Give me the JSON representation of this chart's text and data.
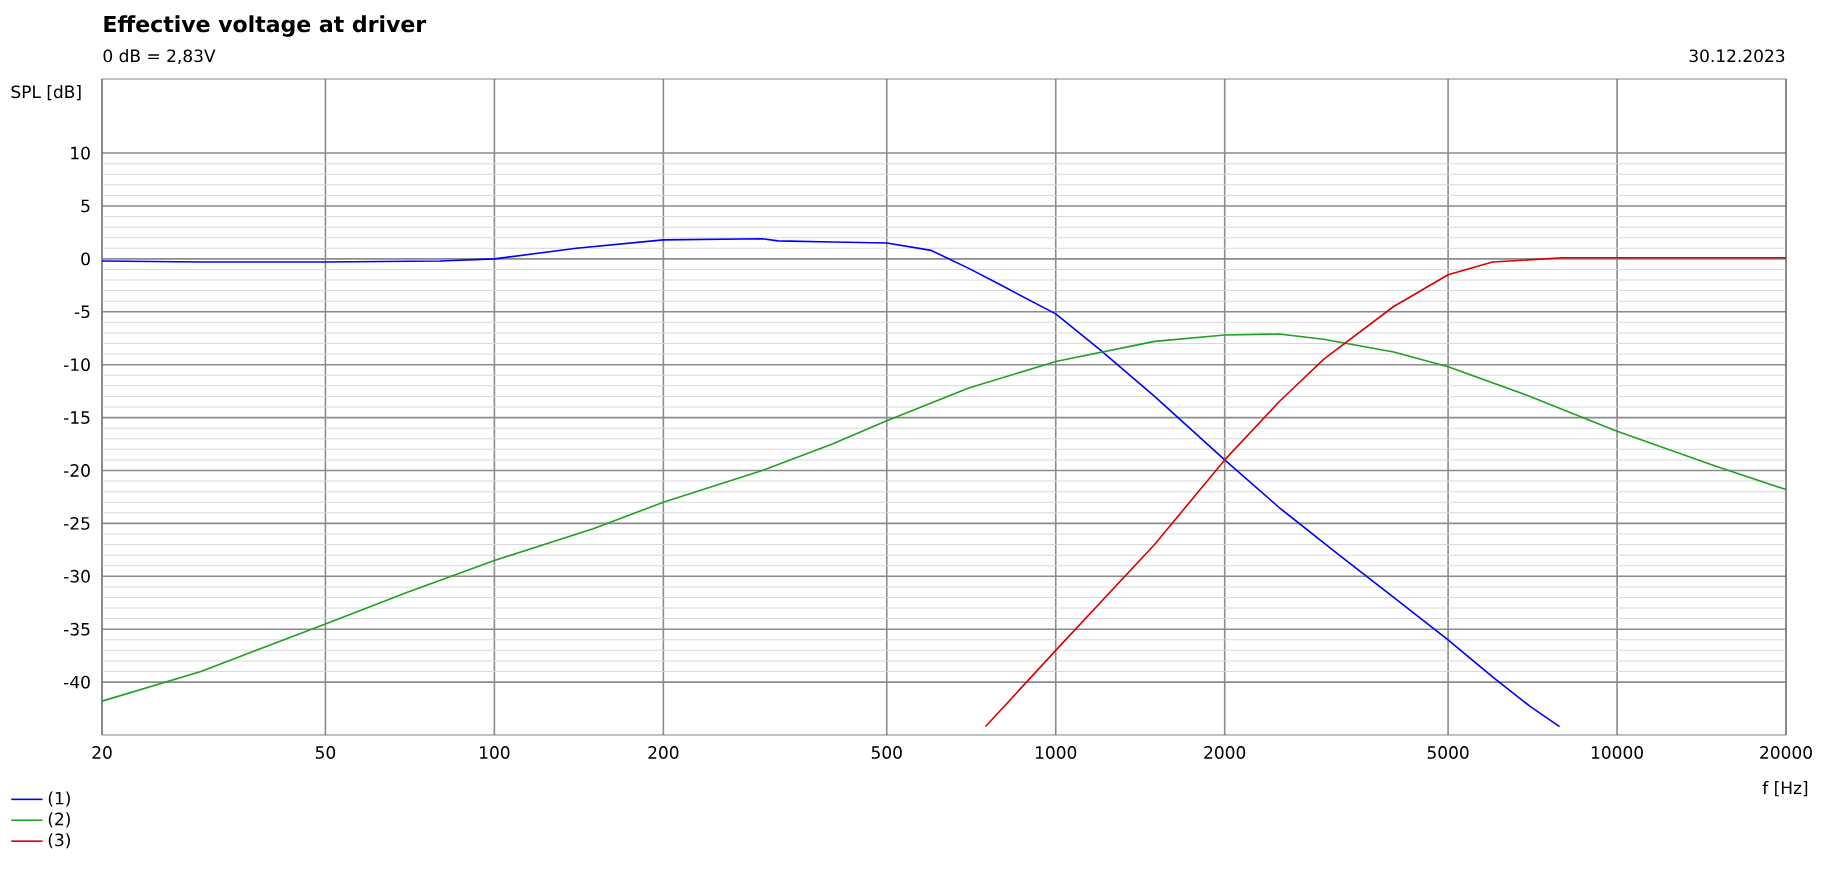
{
  "chart_data": {
    "type": "line",
    "title": "Effective voltage at driver",
    "subtitle": "0 dB = 2,83V",
    "annotations": [
      "30.12.2023"
    ],
    "xlabel": "f [Hz]",
    "ylabel": "SPL [dB]",
    "log": "x",
    "xlim": [
      20,
      20000
    ],
    "ylim": [
      -45,
      17
    ],
    "xticks": [
      20,
      50,
      100,
      200,
      500,
      1000,
      2000,
      5000,
      10000,
      20000
    ],
    "yticks": [
      -40,
      -35,
      -30,
      -25,
      -20,
      -15,
      -10,
      -5,
      0,
      5,
      10
    ],
    "grid": true,
    "legend": "bottom left",
    "line_style": "solid",
    "marker": "none",
    "series": [
      {
        "name": "(1)",
        "color": "#0000ff",
        "x": [
          20,
          30,
          50,
          80,
          100,
          140,
          200,
          300,
          320,
          400,
          500,
          600,
          700,
          800,
          1000,
          1200,
          1500,
          2000,
          2500,
          3200,
          4000,
          5000,
          6000,
          7000,
          7900
        ],
        "values": [
          -0.2,
          -0.3,
          -0.3,
          -0.2,
          0,
          1,
          1.8,
          1.9,
          1.7,
          1.6,
          1.5,
          0.8,
          -0.9,
          -2.5,
          -5.2,
          -8.6,
          -13,
          -19,
          -23.5,
          -28,
          -32,
          -36,
          -39.5,
          -42.3,
          -44.2
        ]
      },
      {
        "name": "(2)",
        "color": "#22a022",
        "x": [
          20,
          30,
          50,
          70,
          100,
          150,
          200,
          300,
          400,
          500,
          700,
          1000,
          1500,
          2000,
          2500,
          3000,
          4000,
          5000,
          7000,
          10000,
          15000,
          20000
        ],
        "values": [
          -41.8,
          -39,
          -34.5,
          -31.5,
          -28.5,
          -25.5,
          -23,
          -20,
          -17.5,
          -15.3,
          -12.2,
          -9.7,
          -7.8,
          -7.2,
          -7.1,
          -7.6,
          -8.8,
          -10.2,
          -13,
          -16.3,
          -19.6,
          -21.8
        ]
      },
      {
        "name": "(3)",
        "color": "#dd0000",
        "x": [
          750,
          1000,
          1500,
          2000,
          2500,
          3000,
          4000,
          5000,
          6000,
          8000,
          10000,
          20000
        ],
        "values": [
          -44.2,
          -37,
          -27,
          -19,
          -13.5,
          -9.5,
          -4.5,
          -1.5,
          -0.3,
          0.1,
          0.1,
          0.1
        ]
      }
    ]
  }
}
